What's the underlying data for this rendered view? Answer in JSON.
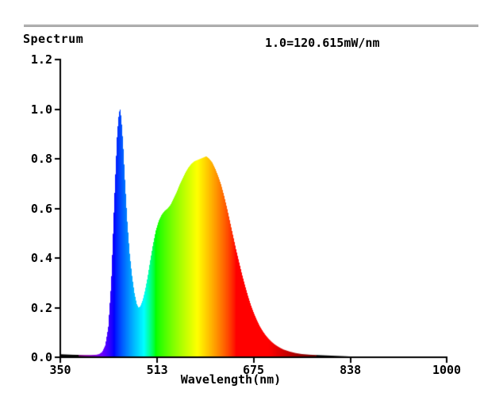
{
  "panel": {
    "title": "Spectrum",
    "scale_note": "1.0=120.615mW/nm"
  },
  "colors": {
    "background": "#ffffff",
    "axis": "#000000",
    "text": "#000000",
    "separator": "#8a8a8a",
    "blue_peak": "#0000ff",
    "phosphor_peak": "#ffa500"
  },
  "chart_data": {
    "type": "area",
    "title": "Spectrum",
    "subtitle": "1.0=120.615mW/nm",
    "xlabel": "Wavelength(nm)",
    "ylabel": "",
    "xlim": [
      350,
      1000
    ],
    "ylim": [
      0,
      1.2
    ],
    "x_ticks": [
      350,
      513,
      675,
      838,
      1000
    ],
    "y_tick_labels": [
      "0.0",
      "0.2",
      "0.4",
      "0.6",
      "0.8",
      "1.0",
      "1.2"
    ],
    "grid": false,
    "legend": false,
    "fill_style": "visible-spectrum-colormap",
    "normalization": "1.0 = 120.615 mW/nm",
    "features": {
      "blue_led_peak": {
        "wavelength_nm": 450,
        "value": 1.0
      },
      "cyan_dip": {
        "wavelength_nm": 481,
        "value": 0.2
      },
      "green_shoulder": {
        "wavelength_nm": 530,
        "value": 0.6
      },
      "phosphor_peak": {
        "wavelength_nm": 595,
        "value": 0.81
      }
    },
    "points": [
      [
        350,
        0.012
      ],
      [
        370,
        0.01
      ],
      [
        390,
        0.009
      ],
      [
        400,
        0.009
      ],
      [
        410,
        0.01
      ],
      [
        415,
        0.013
      ],
      [
        420,
        0.022
      ],
      [
        425,
        0.048
      ],
      [
        430,
        0.12
      ],
      [
        435,
        0.3
      ],
      [
        440,
        0.62
      ],
      [
        445,
        0.9
      ],
      [
        448,
        0.985
      ],
      [
        450,
        1.0
      ],
      [
        452,
        0.965
      ],
      [
        455,
        0.86
      ],
      [
        458,
        0.72
      ],
      [
        462,
        0.55
      ],
      [
        466,
        0.42
      ],
      [
        470,
        0.33
      ],
      [
        474,
        0.26
      ],
      [
        478,
        0.215
      ],
      [
        481,
        0.2
      ],
      [
        484,
        0.205
      ],
      [
        488,
        0.23
      ],
      [
        492,
        0.27
      ],
      [
        496,
        0.32
      ],
      [
        500,
        0.38
      ],
      [
        505,
        0.45
      ],
      [
        510,
        0.51
      ],
      [
        515,
        0.55
      ],
      [
        520,
        0.575
      ],
      [
        525,
        0.59
      ],
      [
        530,
        0.6
      ],
      [
        535,
        0.615
      ],
      [
        540,
        0.64
      ],
      [
        545,
        0.665
      ],
      [
        550,
        0.695
      ],
      [
        555,
        0.72
      ],
      [
        560,
        0.745
      ],
      [
        565,
        0.765
      ],
      [
        570,
        0.78
      ],
      [
        575,
        0.79
      ],
      [
        580,
        0.795
      ],
      [
        585,
        0.8
      ],
      [
        590,
        0.805
      ],
      [
        595,
        0.81
      ],
      [
        600,
        0.8
      ],
      [
        605,
        0.785
      ],
      [
        610,
        0.76
      ],
      [
        615,
        0.73
      ],
      [
        620,
        0.695
      ],
      [
        625,
        0.65
      ],
      [
        630,
        0.6
      ],
      [
        635,
        0.545
      ],
      [
        640,
        0.49
      ],
      [
        645,
        0.435
      ],
      [
        650,
        0.385
      ],
      [
        655,
        0.335
      ],
      [
        660,
        0.29
      ],
      [
        665,
        0.248
      ],
      [
        670,
        0.21
      ],
      [
        675,
        0.178
      ],
      [
        680,
        0.15
      ],
      [
        685,
        0.125
      ],
      [
        690,
        0.105
      ],
      [
        695,
        0.088
      ],
      [
        700,
        0.074
      ],
      [
        705,
        0.062
      ],
      [
        710,
        0.052
      ],
      [
        715,
        0.044
      ],
      [
        720,
        0.037
      ],
      [
        725,
        0.031
      ],
      [
        730,
        0.027
      ],
      [
        735,
        0.023
      ],
      [
        740,
        0.02
      ],
      [
        745,
        0.017
      ],
      [
        750,
        0.015
      ],
      [
        755,
        0.013
      ],
      [
        760,
        0.012
      ],
      [
        765,
        0.011
      ],
      [
        770,
        0.01
      ],
      [
        775,
        0.0095
      ],
      [
        780,
        0.009
      ],
      [
        790,
        0.008
      ],
      [
        800,
        0.007
      ],
      [
        810,
        0.006
      ],
      [
        820,
        0.005
      ],
      [
        830,
        0.004
      ],
      [
        838,
        0.003
      ],
      [
        850,
        0.002
      ],
      [
        875,
        0.0015
      ],
      [
        900,
        0.001
      ],
      [
        950,
        0.0005
      ],
      [
        1000,
        0.0003
      ]
    ]
  }
}
